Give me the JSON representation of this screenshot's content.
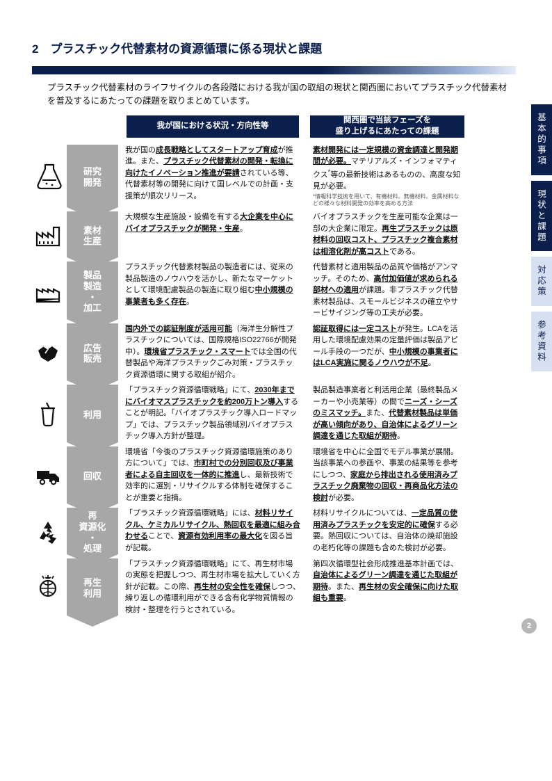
{
  "section_number": "2",
  "section_title": "2　プラスチック代替素材の資源循環に係る現状と課題",
  "intro": "プラスチック代替素材のライフサイクルの各段階における我が国の取組の現状と関西圏においてプラスチック代替素材を普及するにあたっての課題を取りまとめています。",
  "header_left": "我が国における状況・方向性等",
  "header_right": "関西圏で当該フェーズを\n盛り上げるにあたっての課題",
  "tabs": [
    {
      "label": "基本的事項",
      "style": "dark"
    },
    {
      "label": "現状と課題",
      "style": "dark"
    },
    {
      "label": "対応策",
      "style": "light"
    },
    {
      "label": "参考資料",
      "style": "light"
    }
  ],
  "rows": [
    {
      "stage": "研究\n開発",
      "icon": "flask",
      "left": "我が国の<span class='u'>成長戦略としてスタートアップ育成</span>が推進。また、<span class='u'>プラスチック代替素材の開発・転換に向けたイノベーション推進が要請</span>されている等、代替素材等の開発に向けて国レベルでの計画・支援策が順次リリース。",
      "right": "<span class='u'>素材開発には一定規模の資金調達と開発期間が必要。</span>マテリアルズ・インフォマティクス<sup>*</sup>等の最新技術はあるものの、高度な知見が必要。",
      "right_footnote": "*情報科学技術を用いて、有機材料、無機材料、金属材料などの様々な材料開発の効率を高める方法"
    },
    {
      "stage": "素材\n生産",
      "icon": "factory",
      "left": "大規模な生産施設・設備を有する<span class='u'>大企業を中心にバイオプラスチックが開発・生産</span>。",
      "right": "バイオプラスチックを生産可能な企業は一部の大企業に限定。<span class='u'>再生プラスチックは原材料の回収コスト、プラスチック複合素材は相溶化剤が高コスト</span>である。"
    },
    {
      "stage": "製品\n製造\n・\n加工",
      "icon": "factory2",
      "left": "プラスチック代替素材製品の製造者には、従来の製品製造のノウハウを活かし、新たなマーケットとして環境配慮製品の製造に取り組む<span class='u'>中小規模の事業者も多く存在</span>。",
      "right": "代替素材と適用製品の品質や価格がアンマッチ。そのため、<span class='u'>高付加価値が求められる部材への適用</span>が課題。非プラスチック代替素材製品は、スモールビジネスの確立やサービサイジング等の工夫が必要。"
    },
    {
      "stage": "広告\n販売",
      "icon": "handshake",
      "left": "<span class='u'>国内外での認証制度が活用可能</span>（海洋生分解性プラスチックについては、国際規格ISO22766が開発中）。<span class='u'>環境省プラスチック・スマート</span>では全国の代替製品や海洋プラスチックごみ対策・プラスチック資源循環に関する取組が紹介。",
      "right": "<span class='u'>認証取得には一定コスト</span>が発生。LCAを活用した環境配慮効果の定量評価は製品アピール手段の一つだが、<span class='u'>中小規模の事業者にはLCA実施に関るノウハウが不足</span>。"
    },
    {
      "stage": "利用",
      "icon": "cup",
      "left": "「プラスチック資源循環戦略」にて、<span class='u'>2030年までにバイオマスプラスチックを約200万トン導入</span>することが明記。「バイオプラスチック導入ロードマップ」では、プラスチック製品領域別バイオプラスチック導入方針が整理。",
      "right": "製品製造事業者と利活用企業（最終製品メーカーや小売業等）の間で<span class='u'>ニーズ・シーズのミスマッチ。</span>また、<span class='u'>代替素材製品は単価が高い傾向があり、自治体によるグリーン調達を通じた取組が期待</span>。"
    },
    {
      "stage": "回収",
      "icon": "truck",
      "left": "環境省「今後のプラスチック資源循環施策のあり方について」では、<span class='u'>市町村での分別回収及び事業者による自主回収を一体的に推進</span>し、最新技術で効率的に選別・リサイクルする体制を確保することが重要と指摘。",
      "right": "環境省を中心に全国でモデル事業が展開。当該事業への参画や、事業の結果等を参考にしつつ、<span class='u'>家庭から排出される使用済みプラスチック廃棄物の回収・再商品化方法の検討</span>が必要。"
    },
    {
      "stage": "再\n資源化\n・\n処理",
      "icon": "recycle",
      "left": "「プラスチック資源循環戦略」には、<span class='u'>材料リサイクル、ケミカルリサイクル、熱回収を最適に組み合わせる</span>ことで、<span class='u'>資源有効利用率の最大化</span>を図る旨が記載。",
      "right": "材料リサイクルについては、<span class='u'>一定品質の使用済みプラスチックを安定的に確保</span>する必要。熱回収については、自治体の焼却施設の老朽化等の課題も含めた検討が必要。"
    },
    {
      "stage": "再生\n利用",
      "icon": "globe",
      "left": "「プラスチック資源循環戦略」にて、再生材市場の実態を把握しつつ、再生材市場を拡大していく方針が記載。この際、<span class='u'>再生材の安全性を確保</span>しつつ、繰り返しの循環利用ができる含有化学物質情報の検討・整理を行うとされている。",
      "right": "第四次循環型社会形成推進基本計画では、<span class='u'>自治体によるグリーン調達を通じた取組が期待</span>。また、<span class='u'>再生材の安全確保に向けた取組も重要</span>。"
    }
  ],
  "page_number": "2"
}
